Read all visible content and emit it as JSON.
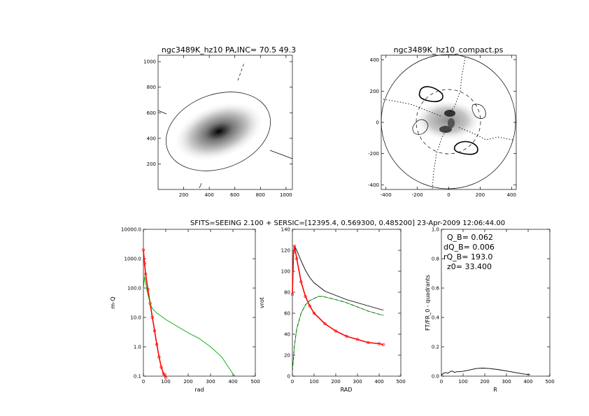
{
  "header": {
    "caption": "SFITS=SEEING 2.100 + SERSIC=[12395.4, 0.569300, 0.485200]  23-Apr-2009 12:06:44.00"
  },
  "panels": {
    "image": {
      "title": "ngc3489K_hz10 PA,INC= 70.5 49.3",
      "xticks": [
        "200",
        "400",
        "600",
        "800",
        "1000"
      ],
      "yticks": [
        "200",
        "400",
        "600",
        "800",
        "1000"
      ]
    },
    "compact": {
      "title": "ngc3489K_hz10_compact.ps",
      "xticks": [
        "-400",
        "-200",
        "0",
        "200",
        "400"
      ],
      "yticks": [
        "-400",
        "-200",
        "0",
        "200",
        "400"
      ]
    },
    "profile": {
      "xlabel": "rad",
      "ylabel": "m-Q",
      "xticks": [
        "0",
        "100",
        "200",
        "300",
        "400",
        "500"
      ],
      "yticks": [
        "0.1",
        "1.0",
        "10.0",
        "100.0",
        "1000.0",
        "10000.0"
      ]
    },
    "rotation": {
      "xlabel": "RAD",
      "ylabel": "vrot",
      "xticks": [
        "0",
        "100",
        "200",
        "300",
        "400",
        "500"
      ],
      "yticks": [
        "0",
        "20",
        "40",
        "60",
        "80",
        "100",
        "120",
        "140"
      ]
    },
    "quadrants": {
      "xlabel": "R",
      "ylabel": "FT/FR_0 - quadrants",
      "xticks": [
        "0",
        "100",
        "200",
        "300",
        "400",
        "500"
      ],
      "yticks": [
        "0.0",
        "0.2",
        "0.4",
        "0.6",
        "0.8",
        "1.0"
      ],
      "stats": [
        "Q_B=  0.062",
        "dQ_B=  0.006",
        "rQ_B=  193.0",
        "z0= 33.400"
      ]
    }
  },
  "colors": {
    "red": "#ff0000",
    "green": "#00b000",
    "black": "#000000"
  },
  "chart_data": [
    {
      "type": "line",
      "panel": "profile",
      "xlabel": "rad",
      "ylabel": "m-Q",
      "xlim": [
        0,
        500
      ],
      "ylim": [
        0.1,
        10000
      ],
      "log_y": true,
      "series": [
        {
          "color": "red",
          "x": [
            0,
            5,
            10,
            20,
            30,
            40,
            50,
            60,
            70,
            80,
            90,
            100
          ],
          "values": [
            2000,
            700,
            300,
            90,
            30,
            10,
            3.5,
            1.2,
            0.45,
            0.2,
            0.12,
            0.09
          ]
        },
        {
          "color": "green",
          "x": [
            0,
            5,
            10,
            20,
            30,
            40,
            60,
            80,
            100,
            150,
            200,
            250,
            300,
            350,
            400,
            410
          ],
          "values": [
            90,
            250,
            150,
            60,
            30,
            20,
            14,
            11,
            8.5,
            5,
            3,
            1.9,
            1.0,
            0.45,
            0.12,
            0.1
          ]
        }
      ]
    },
    {
      "type": "line",
      "panel": "rotation",
      "xlabel": "RAD",
      "ylabel": "vrot",
      "xlim": [
        0,
        500
      ],
      "ylim": [
        0,
        140
      ],
      "series": [
        {
          "color": "black",
          "x": [
            0,
            5,
            10,
            20,
            40,
            60,
            80,
            100,
            150,
            200,
            250,
            300,
            350,
            400,
            420
          ],
          "values": [
            78,
            118,
            124,
            120,
            110,
            101,
            94,
            89,
            81,
            77,
            73,
            70,
            67,
            64,
            63
          ]
        },
        {
          "color": "red",
          "x": [
            0,
            5,
            10,
            20,
            40,
            60,
            80,
            100,
            150,
            200,
            250,
            300,
            350,
            400,
            420
          ],
          "values": [
            78,
            118,
            124,
            112,
            90,
            76,
            67,
            60,
            50,
            43,
            38,
            35,
            32,
            31,
            30
          ]
        },
        {
          "color": "green",
          "x": [
            0,
            10,
            20,
            40,
            60,
            80,
            100,
            120,
            140,
            160,
            200,
            250,
            300,
            350,
            400,
            420
          ],
          "values": [
            5,
            30,
            45,
            60,
            68,
            72,
            74,
            76,
            76,
            75,
            73,
            70,
            66,
            62,
            59,
            58
          ]
        }
      ]
    },
    {
      "type": "line",
      "panel": "quadrants",
      "xlabel": "R",
      "ylabel": "FT/FR_0 - quadrants",
      "xlim": [
        0,
        500
      ],
      "ylim": [
        0,
        1
      ],
      "series": [
        {
          "color": "black",
          "x": [
            0,
            10,
            20,
            30,
            40,
            50,
            60,
            70,
            80,
            100,
            130,
            160,
            190,
            220,
            260,
            300,
            340,
            380,
            410
          ],
          "values": [
            0.005,
            0.02,
            0.025,
            0.02,
            0.03,
            0.035,
            0.025,
            0.03,
            0.03,
            0.033,
            0.042,
            0.052,
            0.055,
            0.052,
            0.045,
            0.035,
            0.025,
            0.015,
            0.01
          ]
        }
      ]
    }
  ]
}
